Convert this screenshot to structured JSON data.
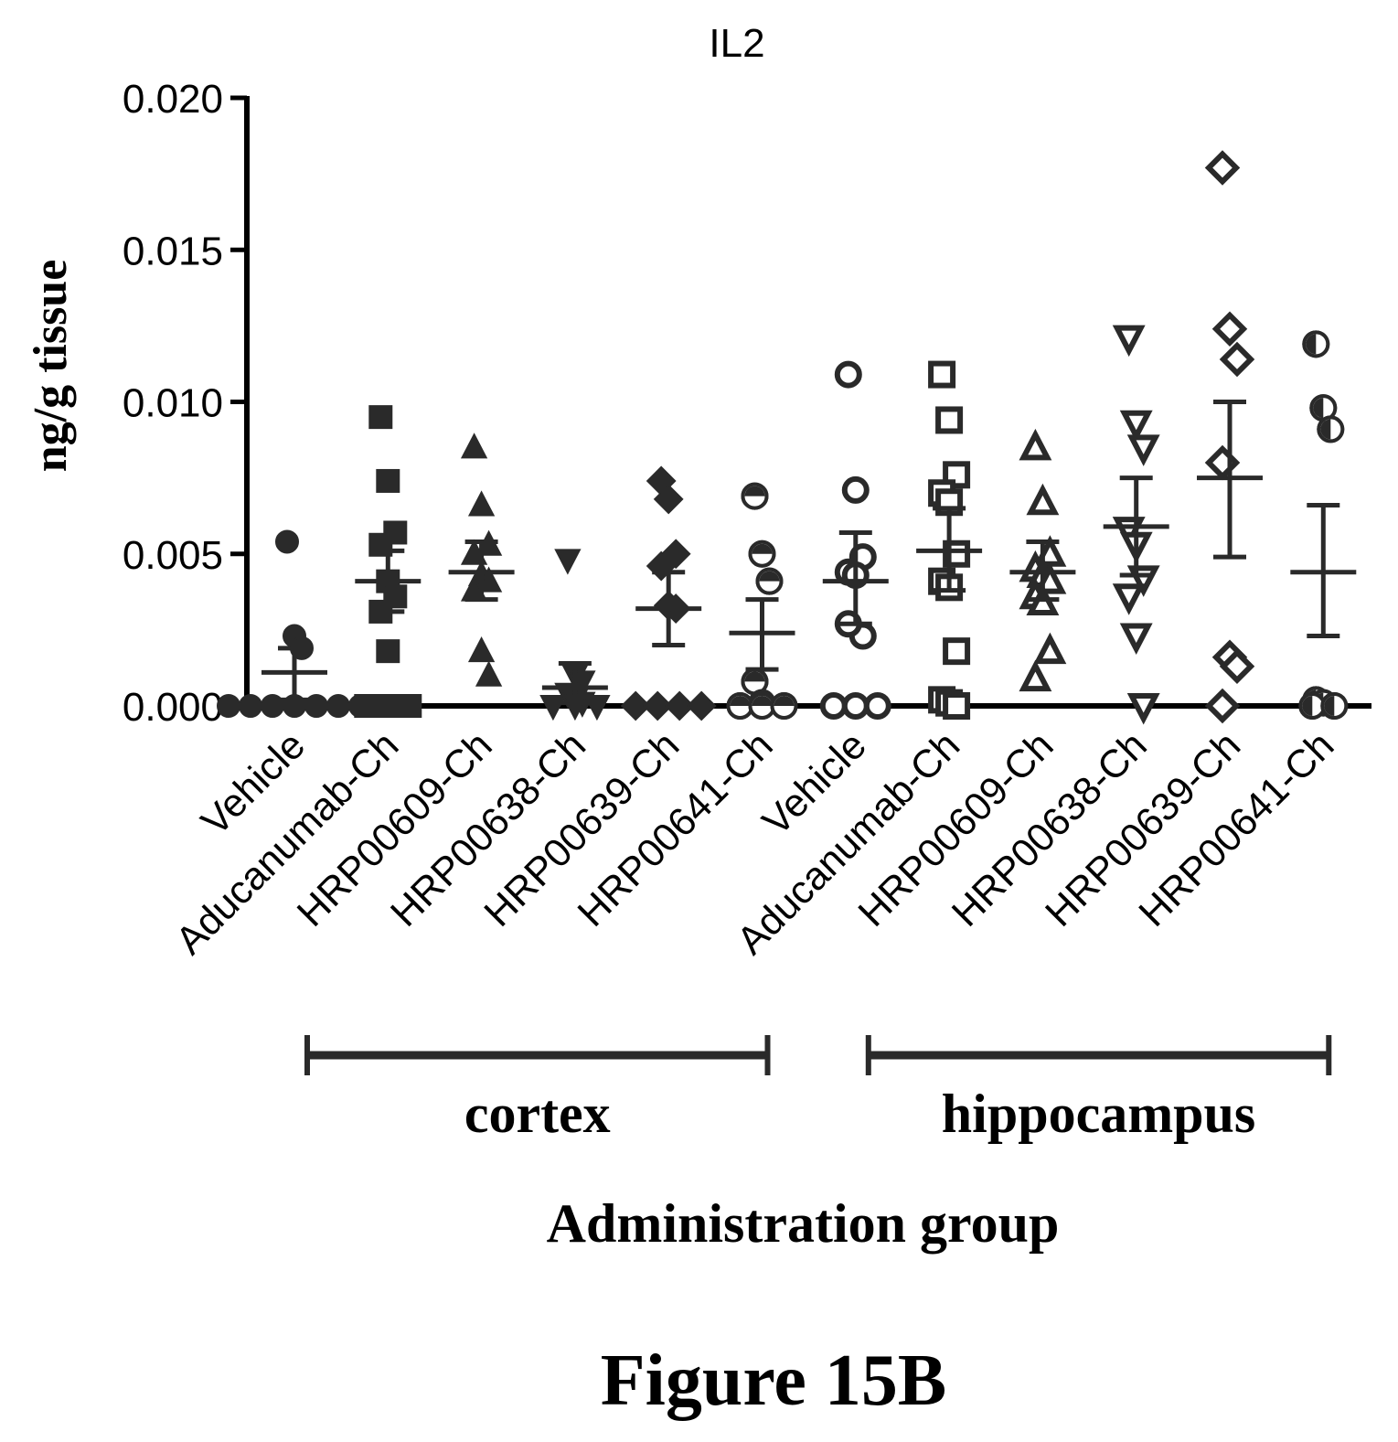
{
  "chart_data": {
    "type": "scatter",
    "title": "IL2",
    "ylabel": "ng/g tissue",
    "xlabel": "Administration group",
    "caption": "Figure 15B",
    "ylim": [
      0,
      0.02
    ],
    "yticks": [
      "0.000",
      "0.005",
      "0.010",
      "0.015",
      "0.020"
    ],
    "ytick_values": [
      0,
      0.005,
      0.01,
      0.015,
      0.02
    ],
    "categories": [
      "Vehicle",
      "Aducanumab-Ch",
      "HRP00609-Ch",
      "HRP00638-Ch",
      "HRP00639-Ch",
      "HRP00641-Ch",
      "Vehicle",
      "Aducanumab-Ch",
      "HRP00609-Ch",
      "HRP00638-Ch",
      "HRP00639-Ch",
      "HRP00641-Ch"
    ],
    "regions": [
      {
        "label": "cortex",
        "from": 0,
        "to": 5
      },
      {
        "label": "hippocampus",
        "from": 6,
        "to": 11
      }
    ],
    "series": [
      {
        "marker": "circle",
        "fill": "solid",
        "points": [
          0.0054,
          0.0023,
          0.0019,
          0,
          0,
          0,
          0,
          0,
          0,
          0
        ],
        "mean": 0.0011,
        "sem": [
          0.0002,
          0.0019
        ]
      },
      {
        "marker": "square",
        "fill": "solid",
        "points": [
          0.0095,
          0.0074,
          0.0057,
          0.0053,
          0.0041,
          0.0036,
          0.0031,
          0.0018,
          0,
          0,
          0
        ],
        "mean": 0.0041,
        "sem": [
          0.0031,
          0.0051
        ]
      },
      {
        "marker": "triangle-up",
        "fill": "solid",
        "points": [
          0.0085,
          0.0066,
          0.0053,
          0.005,
          0.0043,
          0.0041,
          0.0038,
          0.0018,
          0.001
        ],
        "mean": 0.0044,
        "sem": [
          0.0035,
          0.0054
        ]
      },
      {
        "marker": "triangle-down",
        "fill": "solid",
        "points": [
          0.0048,
          0.001,
          0.0008,
          0.0004,
          0.0002,
          0.0001,
          0,
          0,
          0
        ],
        "mean": 0.0006,
        "sem": [
          0.0001,
          0.0014
        ]
      },
      {
        "marker": "diamond",
        "fill": "solid",
        "points": [
          0.0074,
          0.0068,
          0.005,
          0.0046,
          0.0033,
          0.0032,
          0,
          0,
          0,
          0
        ],
        "mean": 0.0032,
        "sem": [
          0.002,
          0.0044
        ]
      },
      {
        "marker": "circle",
        "fill": "half",
        "points": [
          0.0069,
          0.005,
          0.0041,
          0.0008,
          0.0001,
          0,
          0,
          0
        ],
        "mean": 0.0024,
        "sem": [
          0.0012,
          0.0035
        ]
      },
      {
        "marker": "circle",
        "fill": "open",
        "points": [
          0.0109,
          0.0071,
          0.0049,
          0.0044,
          0.0043,
          0.0023,
          0.0027,
          0,
          0,
          0
        ],
        "mean": 0.0041,
        "sem": [
          0.0027,
          0.0057
        ]
      },
      {
        "marker": "square",
        "fill": "open",
        "points": [
          0.0109,
          0.0094,
          0.0076,
          0.007,
          0.0067,
          0.005,
          0.0041,
          0.0039,
          0.0018,
          0.0002,
          0.0001,
          0
        ],
        "mean": 0.0051,
        "sem": [
          0.0038,
          0.0065
        ]
      },
      {
        "marker": "triangle-up",
        "fill": "open",
        "points": [
          0.0085,
          0.0067,
          0.005,
          0.0045,
          0.0043,
          0.0041,
          0.0036,
          0.0034,
          0.0018,
          0.0009
        ],
        "mean": 0.0044,
        "sem": [
          0.0035,
          0.0054
        ]
      },
      {
        "marker": "triangle-down",
        "fill": "open",
        "points": [
          0.0121,
          0.0093,
          0.0085,
          0.0058,
          0.0053,
          0.0042,
          0.0036,
          0.0023,
          0
        ],
        "mean": 0.0059,
        "sem": [
          0.0043,
          0.0075
        ]
      },
      {
        "marker": "diamond",
        "fill": "open",
        "points": [
          0.0177,
          0.0124,
          0.0114,
          0.008,
          0.0016,
          0.0013,
          0
        ],
        "mean": 0.0075,
        "sem": [
          0.0049,
          0.01
        ]
      },
      {
        "marker": "circle",
        "fill": "half-open",
        "points": [
          0.0119,
          0.0098,
          0.0091,
          0.0002,
          0.0001,
          0,
          0
        ],
        "mean": 0.0044,
        "sem": [
          0.0023,
          0.0066
        ]
      }
    ]
  }
}
